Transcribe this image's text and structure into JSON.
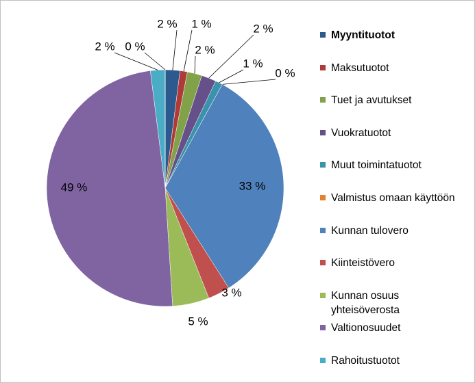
{
  "chart_data": {
    "type": "pie",
    "categories": [
      "Myyntituotot",
      "Maksutuotot",
      "Tuet ja avutukset",
      "Vuokratuotot",
      "Muut toimintatuotot",
      "Valmistus omaan käyttöön",
      "Kunnan tulovero",
      "Kiinteistövero",
      "Kunnan osuus yhteisöverosta",
      "Valtionosuudet",
      "Rahoitustuotot",
      null
    ],
    "values": [
      2,
      1,
      2,
      2,
      1,
      0,
      33,
      3,
      5,
      49,
      2,
      0
    ],
    "value_labels": [
      "2 %",
      "1 %",
      "2 %",
      "2 %",
      "1 %",
      "0 %",
      "33 %",
      "3 %",
      "5 %",
      "49 %",
      "2 %",
      "0 %"
    ],
    "colors": [
      "#2c5a8f",
      "#b03a37",
      "#82a24a",
      "#65508a",
      "#3a93ab",
      "#e4802e",
      "#4f81bd",
      "#c0504d",
      "#9bbb59",
      "#8064a2",
      "#4bacc6",
      "#2c5a8f"
    ],
    "legend": "right"
  }
}
